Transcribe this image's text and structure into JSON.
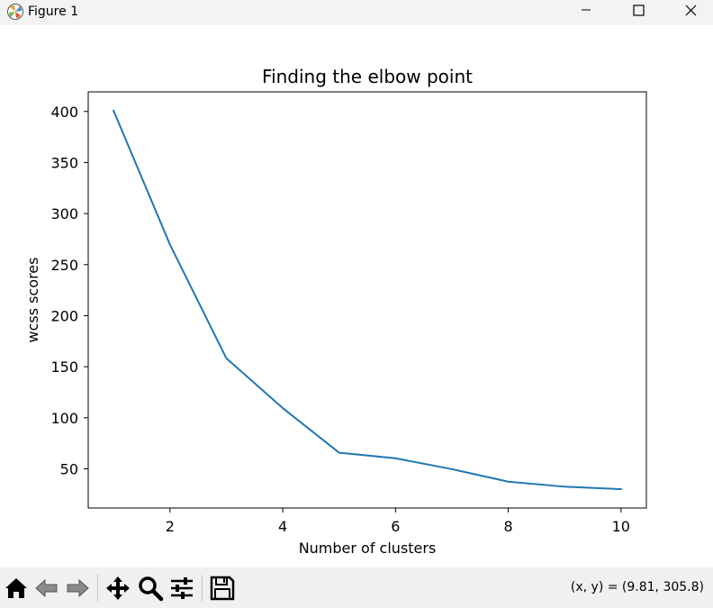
{
  "window": {
    "title": "Figure 1",
    "icons": [
      "matplotlib-logo-icon",
      "minimize-icon",
      "maximize-icon",
      "close-icon"
    ]
  },
  "toolbar": {
    "tools": [
      "home-icon",
      "back-arrow-icon",
      "forward-arrow-icon",
      "pan-move-icon",
      "zoom-magnifier-icon",
      "configure-subplots-icon",
      "save-floppy-icon"
    ],
    "coords_readout": "(x, y) = (9.81, 305.8)"
  },
  "chart_data": {
    "type": "line",
    "title": "Finding the elbow point",
    "xlabel": "Number of clusters",
    "ylabel": "wcss scores",
    "x": [
      1,
      2,
      3,
      4,
      5,
      6,
      7,
      8,
      9,
      10
    ],
    "series": [
      {
        "color": "#1f77b4",
        "values": [
          400.7,
          269.6,
          158.2,
          109.5,
          65.8,
          60.3,
          49.7,
          37.4,
          32.5,
          30.1
        ]
      }
    ],
    "xlim": [
      0.55,
      10.45
    ],
    "ylim": [
      11.6,
      419.2
    ],
    "xticks": [
      2,
      4,
      6,
      8,
      10
    ],
    "yticks": [
      50,
      100,
      150,
      200,
      250,
      300,
      350,
      400
    ],
    "grid": false,
    "legend": "none"
  }
}
